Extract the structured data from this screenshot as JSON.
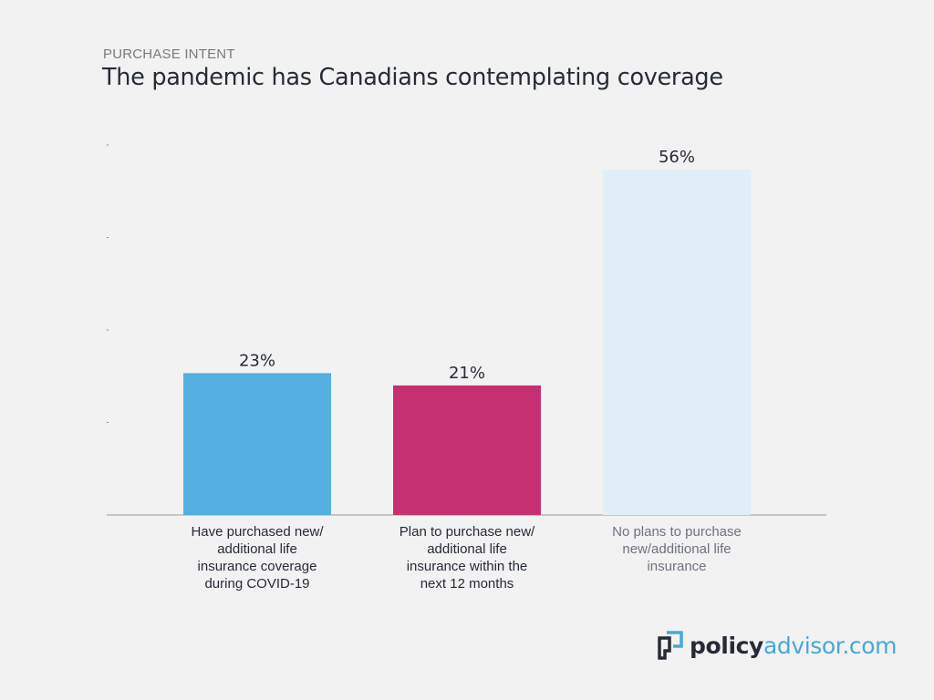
{
  "header": {
    "eyebrow": "PURCHASE INTENT",
    "title": "The pandemic has Canadians contemplating coverage"
  },
  "chart_data": {
    "type": "bar",
    "categories": [
      [
        "Have purchased new/",
        "additional life",
        "insurance coverage",
        "during COVID-19"
      ],
      [
        "Plan to purchase new/",
        "additional life",
        "insurance within the",
        "next 12 months"
      ],
      [
        "No plans to purchase",
        "new/additional life",
        "insurance"
      ]
    ],
    "values": [
      23,
      21,
      56
    ],
    "value_labels": [
      "23%",
      "21%",
      "56%"
    ],
    "colors": [
      "#55afe0",
      "#c53170",
      "#e1eff8"
    ],
    "label_colors": [
      "#262b38",
      "#262b38",
      "#6e7280"
    ],
    "ylim": [
      0,
      60
    ],
    "grid": false,
    "legend": "none"
  },
  "logo": {
    "policy": "policy",
    "advisor": "advisor.com"
  }
}
